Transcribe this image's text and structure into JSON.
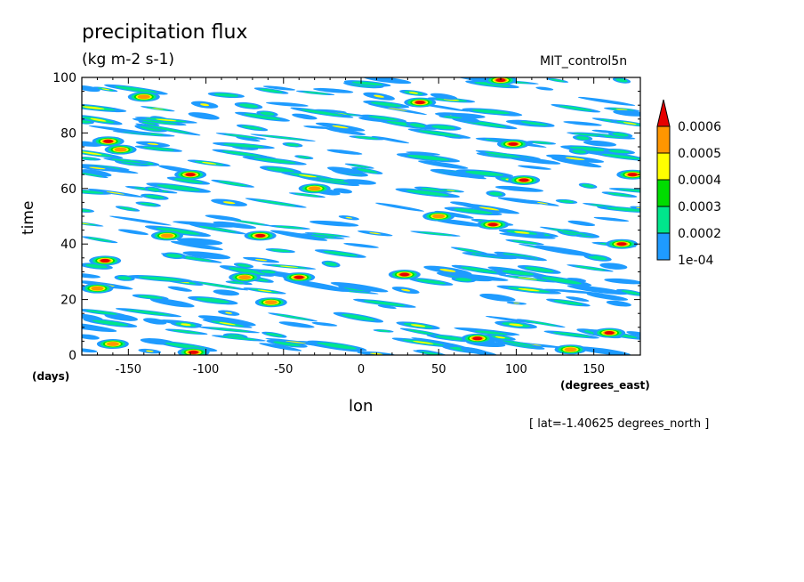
{
  "header": {
    "title": "precipitation flux",
    "units": "(kg m-2 s-1)",
    "run_name": "MIT_control5n"
  },
  "footer": {
    "annotation": "[ lat=-1.40625 degrees_north ]"
  },
  "chart_data": {
    "type": "heatmap",
    "title": "precipitation flux",
    "subtitle": "(kg m-2 s-1)",
    "xlabel": "lon",
    "xunits": "(degrees_east)",
    "ylabel": "time",
    "yunits": "(days)",
    "xlim": [
      -180,
      180
    ],
    "ylim": [
      0,
      100
    ],
    "xticks": [
      -150,
      -100,
      -50,
      0,
      50,
      100,
      150
    ],
    "yticks": [
      0,
      20,
      40,
      60,
      80,
      100
    ],
    "colorbar": {
      "levels": [
        "1e-04",
        "0.0002",
        "0.0003",
        "0.0004",
        "0.0005",
        "0.0006"
      ],
      "colors": [
        "#1e9bff",
        "#00e68c",
        "#00dc00",
        "#ffff00",
        "#ff9600",
        "#e60000"
      ],
      "extend": "max"
    },
    "features": [
      {
        "lon": -163,
        "time": 77,
        "value": 0.0006
      },
      {
        "lon": -155,
        "time": 74,
        "value": 0.0005
      },
      {
        "lon": 38,
        "time": 91,
        "value": 0.0006
      },
      {
        "lon": 98,
        "time": 76,
        "value": 0.0006
      },
      {
        "lon": 105,
        "time": 63,
        "value": 0.0006
      },
      {
        "lon": 175,
        "time": 65,
        "value": 0.0006
      },
      {
        "lon": -110,
        "time": 65,
        "value": 0.0006
      },
      {
        "lon": -65,
        "time": 43,
        "value": 0.0006
      },
      {
        "lon": -125,
        "time": 43,
        "value": 0.0005
      },
      {
        "lon": -40,
        "time": 28,
        "value": 0.0006
      },
      {
        "lon": 28,
        "time": 29,
        "value": 0.0006
      },
      {
        "lon": -165,
        "time": 34,
        "value": 0.0006
      },
      {
        "lon": 75,
        "time": 6,
        "value": 0.0006
      },
      {
        "lon": 160,
        "time": 8,
        "value": 0.0006
      },
      {
        "lon": -108,
        "time": 1,
        "value": 0.0006
      },
      {
        "lon": 90,
        "time": 99,
        "value": 0.0006
      },
      {
        "lon": -160,
        "time": 4,
        "value": 0.0005
      },
      {
        "lon": -58,
        "time": 19,
        "value": 0.0005
      },
      {
        "lon": 168,
        "time": 40,
        "value": 0.0006
      },
      {
        "lon": 85,
        "time": 47,
        "value": 0.0006
      },
      {
        "lon": -30,
        "time": 60,
        "value": 0.0005
      },
      {
        "lon": -75,
        "time": 28,
        "value": 0.0005
      },
      {
        "lon": -140,
        "time": 93,
        "value": 0.0005
      },
      {
        "lon": -170,
        "time": 24,
        "value": 0.0005
      },
      {
        "lon": 135,
        "time": 2,
        "value": 0.0005
      },
      {
        "lon": 50,
        "time": 50,
        "value": 0.0005
      }
    ]
  }
}
